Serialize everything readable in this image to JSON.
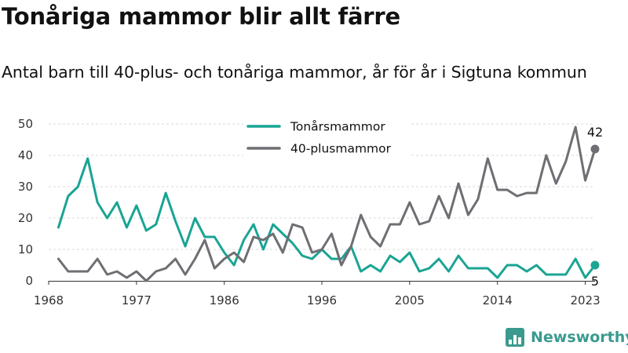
{
  "header": {
    "title": "Tonåriga mammor blir allt färre",
    "subtitle": "Antal barn till 40-plus- och tonåriga mammor, år för år i Sigtuna kommun"
  },
  "brand": {
    "name": "Newsworthy",
    "icon": "newsworthy-logo-icon",
    "color": "#3a9a8e"
  },
  "chart_data": {
    "type": "line",
    "x_start": 1969,
    "x": [
      1969,
      1970,
      1971,
      1972,
      1973,
      1974,
      1975,
      1976,
      1977,
      1978,
      1979,
      1980,
      1981,
      1982,
      1983,
      1984,
      1985,
      1986,
      1987,
      1988,
      1989,
      1990,
      1991,
      1992,
      1993,
      1994,
      1995,
      1996,
      1997,
      1998,
      1999,
      2000,
      2001,
      2002,
      2003,
      2004,
      2005,
      2006,
      2007,
      2008,
      2009,
      2010,
      2011,
      2012,
      2013,
      2014,
      2015,
      2016,
      2017,
      2018,
      2019,
      2020,
      2021,
      2022,
      2023,
      2024
    ],
    "series": [
      {
        "name": "Tonårsmammor",
        "color": "#1aa493",
        "values": [
          17,
          27,
          30,
          39,
          25,
          20,
          25,
          17,
          24,
          16,
          18,
          28,
          19,
          11,
          20,
          14,
          14,
          9,
          5,
          13,
          18,
          10,
          18,
          15,
          12,
          8,
          7,
          10,
          7,
          7,
          11,
          3,
          5,
          3,
          8,
          6,
          9,
          3,
          4,
          7,
          3,
          8,
          4,
          4,
          4,
          1,
          5,
          5,
          3,
          5,
          2,
          2,
          2,
          7,
          1,
          5
        ],
        "end_label": "5"
      },
      {
        "name": "40-plusmammor",
        "color": "#6e6e73",
        "values": [
          7,
          3,
          3,
          3,
          7,
          2,
          3,
          1,
          3,
          0,
          3,
          4,
          7,
          2,
          7,
          13,
          4,
          7,
          9,
          6,
          14,
          13,
          15,
          9,
          18,
          17,
          9,
          10,
          15,
          5,
          11,
          21,
          14,
          11,
          18,
          18,
          25,
          18,
          19,
          27,
          20,
          31,
          21,
          26,
          39,
          29,
          29,
          27,
          28,
          28,
          40,
          31,
          38,
          49,
          32,
          42
        ],
        "end_label": "42"
      }
    ],
    "xticks": [
      1968,
      1977,
      1986,
      1996,
      2005,
      2014,
      2023
    ],
    "yticks": [
      0,
      10,
      20,
      30,
      40,
      50
    ],
    "ylim": [
      0,
      50
    ],
    "xlim": [
      1968,
      2024
    ],
    "grid": "horizontal-dashed",
    "legend_placement": "top-center"
  }
}
